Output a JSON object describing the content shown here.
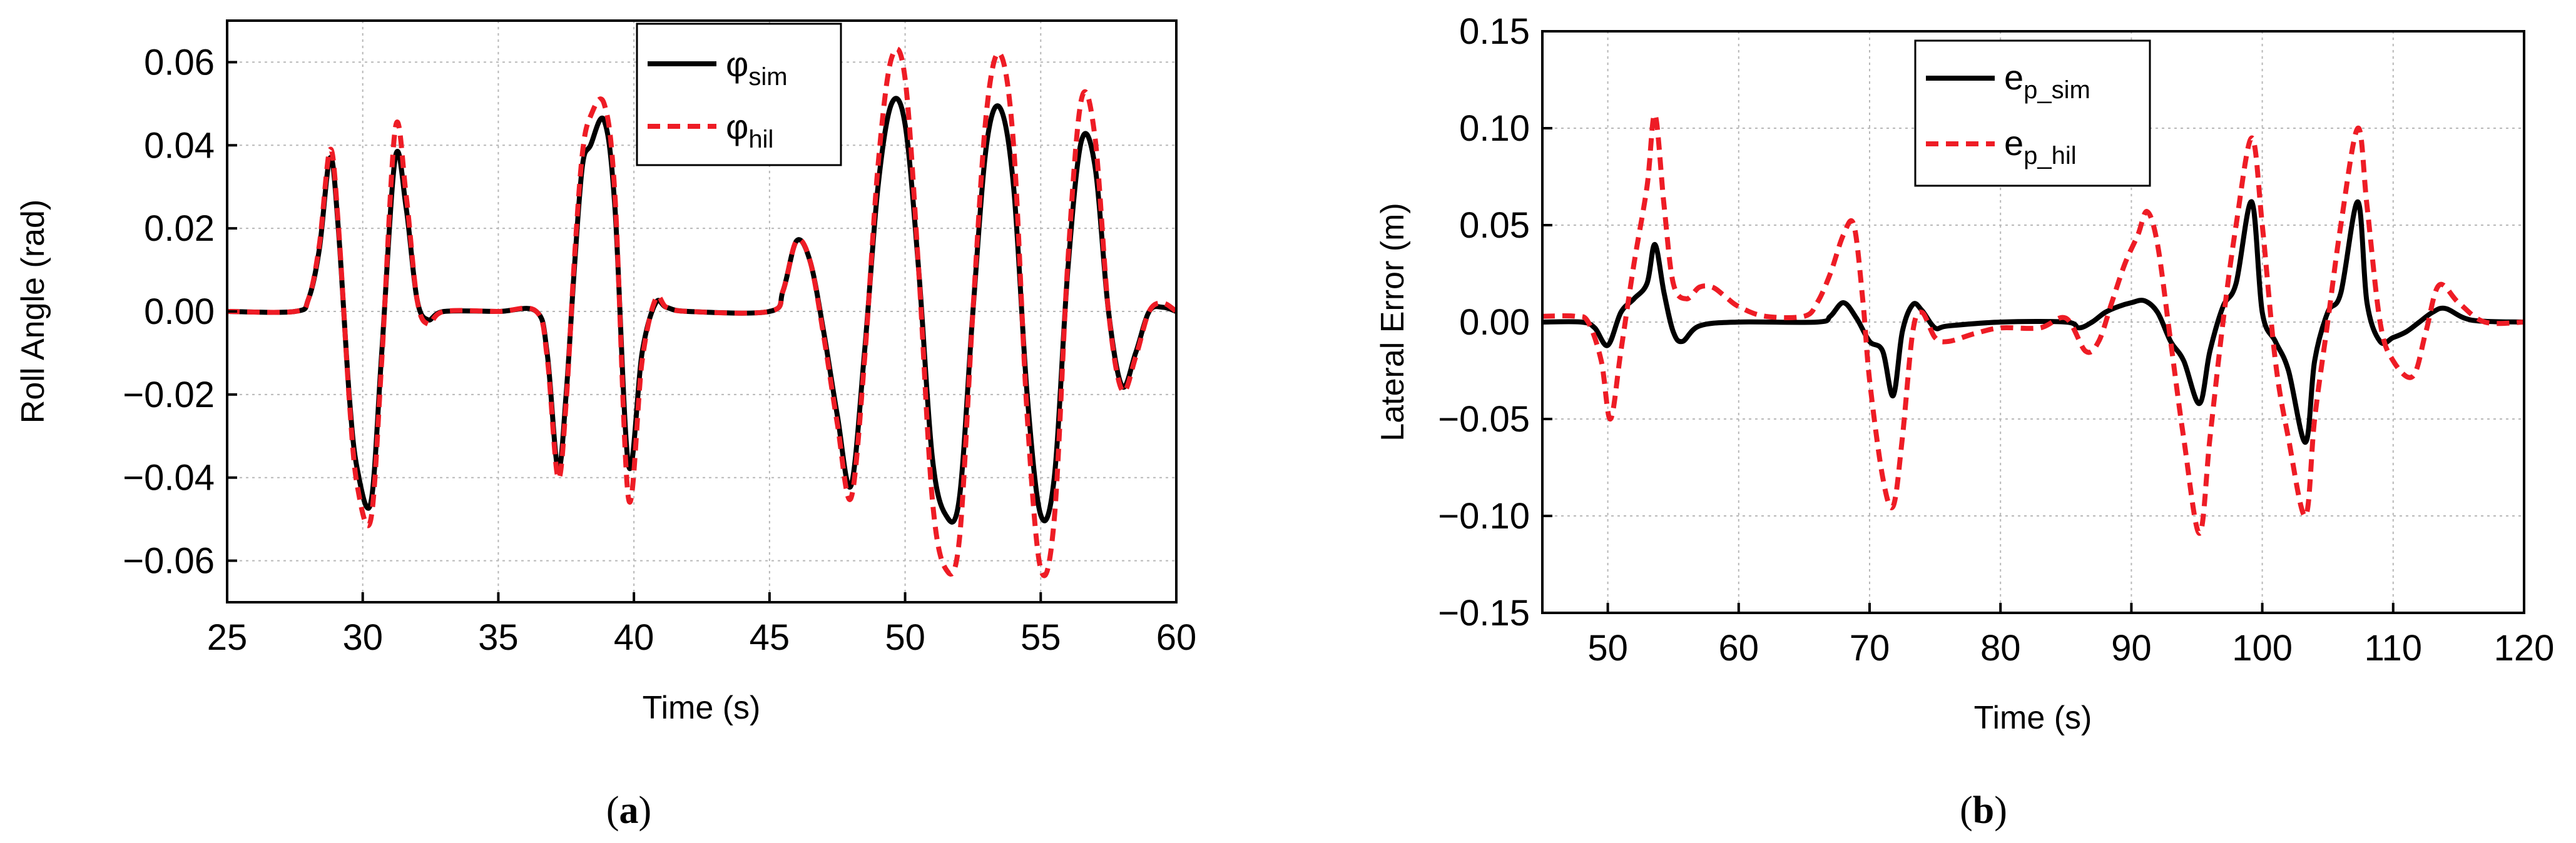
{
  "chart_data": [
    {
      "type": "line",
      "panel_label": "a",
      "xlabel": "Time (s)",
      "ylabel": "Roll Angle (rad)",
      "xlim": [
        25,
        60
      ],
      "ylim": [
        -0.07,
        0.07
      ],
      "x_ticks": [
        25,
        30,
        35,
        40,
        45,
        50,
        55,
        60
      ],
      "y_ticks": [
        0.06,
        0.04,
        0.02,
        0.0,
        -0.02,
        -0.04,
        -0.06
      ],
      "x_tick_labels": [
        "25",
        "30",
        "35",
        "40",
        "45",
        "50",
        "55",
        "60"
      ],
      "y_tick_labels": [
        "0.06",
        "0.04",
        "0.02",
        "0.00",
        "−0.02",
        "−0.04",
        "−0.06"
      ],
      "grid": true,
      "legend_position": "top-center",
      "series": [
        {
          "name": "φsim",
          "label_main": "φ",
          "label_sub": "sim",
          "color": "#000000",
          "style": "solid",
          "x": [
            25,
            27.5,
            28.0,
            28.4,
            28.8,
            29.1,
            29.5,
            29.8,
            30.3,
            30.7,
            31.2,
            31.6,
            32.0,
            32.4,
            33.0,
            35.0,
            36.4,
            36.8,
            37.2,
            37.5,
            37.8,
            38.1,
            38.4,
            38.9,
            39.3,
            39.8,
            40.3,
            40.8,
            41.2,
            42.0,
            45.0,
            45.5,
            46.0,
            46.5,
            47.0,
            47.5,
            48.0,
            48.5,
            49.0,
            49.5,
            50.0,
            50.5,
            51.0,
            51.5,
            52.0,
            52.5,
            53.0,
            53.5,
            54.0,
            54.5,
            55.0,
            55.5,
            56.0,
            56.5,
            57.0,
            57.5,
            58.0,
            58.5,
            59.0,
            59.5,
            60.0
          ],
          "values": [
            0,
            0,
            0.003,
            0.015,
            0.037,
            0.02,
            -0.02,
            -0.038,
            -0.046,
            -0.01,
            0.037,
            0.025,
            0.003,
            -0.002,
            0,
            0,
            0,
            -0.01,
            -0.038,
            -0.02,
            0.01,
            0.035,
            0.04,
            0.046,
            0.025,
            -0.037,
            -0.01,
            0.002,
            0.001,
            0,
            0,
            0.005,
            0.017,
            0.012,
            -0.005,
            -0.025,
            -0.042,
            -0.01,
            0.03,
            0.05,
            0.045,
            0.01,
            -0.035,
            -0.049,
            -0.045,
            0.0,
            0.04,
            0.049,
            0.03,
            -0.02,
            -0.049,
            -0.04,
            0.01,
            0.041,
            0.035,
            0.0,
            -0.018,
            -0.01,
            0.0,
            0.001,
            0.0
          ]
        },
        {
          "name": "φhil",
          "label_main": "φ",
          "label_sub": "hil",
          "color": "#ee1c25",
          "style": "dashed",
          "x": [
            25,
            27.5,
            28.0,
            28.4,
            28.8,
            29.1,
            29.5,
            29.8,
            30.3,
            30.7,
            31.2,
            31.6,
            32.0,
            32.4,
            33.0,
            35.0,
            36.4,
            36.8,
            37.2,
            37.5,
            37.8,
            38.1,
            38.4,
            38.9,
            39.3,
            39.8,
            40.3,
            40.8,
            41.2,
            42.0,
            45.0,
            45.5,
            46.0,
            46.5,
            47.0,
            47.5,
            48.0,
            48.5,
            49.0,
            49.5,
            50.0,
            50.5,
            51.0,
            51.5,
            52.0,
            52.5,
            53.0,
            53.5,
            54.0,
            54.5,
            55.0,
            55.5,
            56.0,
            56.5,
            57.0,
            57.5,
            58.0,
            58.5,
            59.0,
            59.5,
            60.0
          ],
          "values": [
            0,
            0,
            0.003,
            0.016,
            0.039,
            0.021,
            -0.021,
            -0.042,
            -0.05,
            -0.012,
            0.044,
            0.028,
            0.003,
            -0.003,
            0,
            0,
            0,
            -0.011,
            -0.04,
            -0.022,
            0.012,
            0.038,
            0.047,
            0.05,
            0.028,
            -0.045,
            -0.012,
            0.003,
            0.001,
            0,
            0,
            0.005,
            0.017,
            0.012,
            -0.006,
            -0.027,
            -0.045,
            -0.012,
            0.035,
            0.061,
            0.056,
            0.01,
            -0.045,
            -0.062,
            -0.055,
            0.0,
            0.048,
            0.062,
            0.04,
            -0.025,
            -0.062,
            -0.05,
            0.012,
            0.051,
            0.042,
            0.0,
            -0.019,
            -0.011,
            0.0,
            0.002,
            0.0
          ]
        }
      ]
    },
    {
      "type": "line",
      "panel_label": "b",
      "xlabel": "Time (s)",
      "ylabel": "Lateral Error (m)",
      "xlim": [
        45,
        120
      ],
      "ylim": [
        -0.15,
        0.15
      ],
      "x_ticks": [
        50,
        60,
        70,
        80,
        90,
        100,
        110,
        120
      ],
      "y_ticks": [
        0.15,
        0.1,
        0.05,
        0.0,
        -0.05,
        -0.1,
        -0.15
      ],
      "x_tick_labels": [
        "50",
        "60",
        "70",
        "80",
        "90",
        "100",
        "110",
        "120"
      ],
      "y_tick_labels": [
        "0.15",
        "0.10",
        "0.05",
        "0.00",
        "−0.05",
        "−0.10",
        "−0.15"
      ],
      "grid": true,
      "legend_position": "top-center",
      "series": [
        {
          "name": "ep_sim",
          "label_main": "e",
          "label_sub": "p_sim",
          "color": "#000000",
          "style": "solid",
          "x": [
            45,
            48,
            49,
            50,
            51,
            52,
            53,
            53.6,
            54.3,
            55,
            55.7,
            57,
            60,
            66,
            67,
            68,
            69,
            70,
            71,
            71.8,
            72.5,
            73.3,
            74,
            75,
            76,
            80,
            85,
            86,
            87,
            88,
            89,
            90,
            91,
            92,
            93,
            94,
            95.2,
            96,
            97,
            98,
            99.2,
            100,
            101,
            102,
            103.3,
            104,
            105,
            106,
            107.3,
            108,
            109,
            110,
            111,
            112,
            113,
            114,
            116,
            120
          ],
          "values": [
            0,
            0,
            -0.003,
            -0.012,
            0.005,
            0.012,
            0.02,
            0.04,
            0.015,
            -0.005,
            -0.01,
            -0.002,
            0,
            0,
            0.003,
            0.01,
            0.002,
            -0.01,
            -0.015,
            -0.038,
            -0.005,
            0.009,
            0.006,
            -0.003,
            -0.002,
            0,
            0,
            -0.003,
            0,
            0.005,
            0.008,
            0.01,
            0.011,
            0.005,
            -0.01,
            -0.02,
            -0.042,
            -0.015,
            0.008,
            0.02,
            0.062,
            0.005,
            -0.01,
            -0.025,
            -0.062,
            -0.02,
            0.005,
            0.015,
            0.062,
            0.01,
            -0.01,
            -0.008,
            -0.005,
            0.0,
            0.005,
            0.007,
            0.001,
            0
          ]
        },
        {
          "name": "ep_hil",
          "label_main": "e",
          "label_sub": "p_hil",
          "color": "#ee1c25",
          "style": "dashed",
          "x": [
            45,
            47.5,
            48.5,
            49.5,
            50.2,
            51,
            52,
            53,
            53.6,
            54.3,
            55,
            56,
            57,
            58,
            59,
            60,
            62,
            65,
            66,
            67,
            68,
            68.8,
            69.5,
            70,
            71,
            71.8,
            72.5,
            73.3,
            74,
            75,
            76,
            78,
            80,
            83,
            85,
            86.5,
            87.5,
            88.5,
            89.5,
            90.5,
            91.2,
            92,
            93,
            94,
            95.2,
            96,
            97,
            98,
            99.2,
            100,
            101,
            102,
            103.3,
            104,
            105,
            106,
            107.3,
            108,
            109,
            110,
            111.5,
            112.5,
            113.5,
            115,
            117,
            120
          ],
          "values": [
            0.003,
            0.003,
            0,
            -0.02,
            -0.05,
            -0.015,
            0.03,
            0.07,
            0.107,
            0.06,
            0.02,
            0.012,
            0.018,
            0.018,
            0.013,
            0.008,
            0.003,
            0.003,
            0.01,
            0.025,
            0.045,
            0.05,
            0.01,
            -0.03,
            -0.08,
            -0.095,
            -0.06,
            -0.005,
            0.005,
            -0.008,
            -0.01,
            -0.006,
            -0.003,
            -0.003,
            0.002,
            -0.015,
            -0.01,
            0.01,
            0.03,
            0.045,
            0.057,
            0.04,
            -0.01,
            -0.06,
            -0.109,
            -0.06,
            0.0,
            0.05,
            0.095,
            0.05,
            -0.02,
            -0.06,
            -0.1,
            -0.05,
            0.0,
            0.05,
            0.1,
            0.06,
            0.0,
            -0.02,
            -0.028,
            -0.005,
            0.019,
            0.01,
            0.0,
            0.0
          ]
        }
      ]
    }
  ]
}
